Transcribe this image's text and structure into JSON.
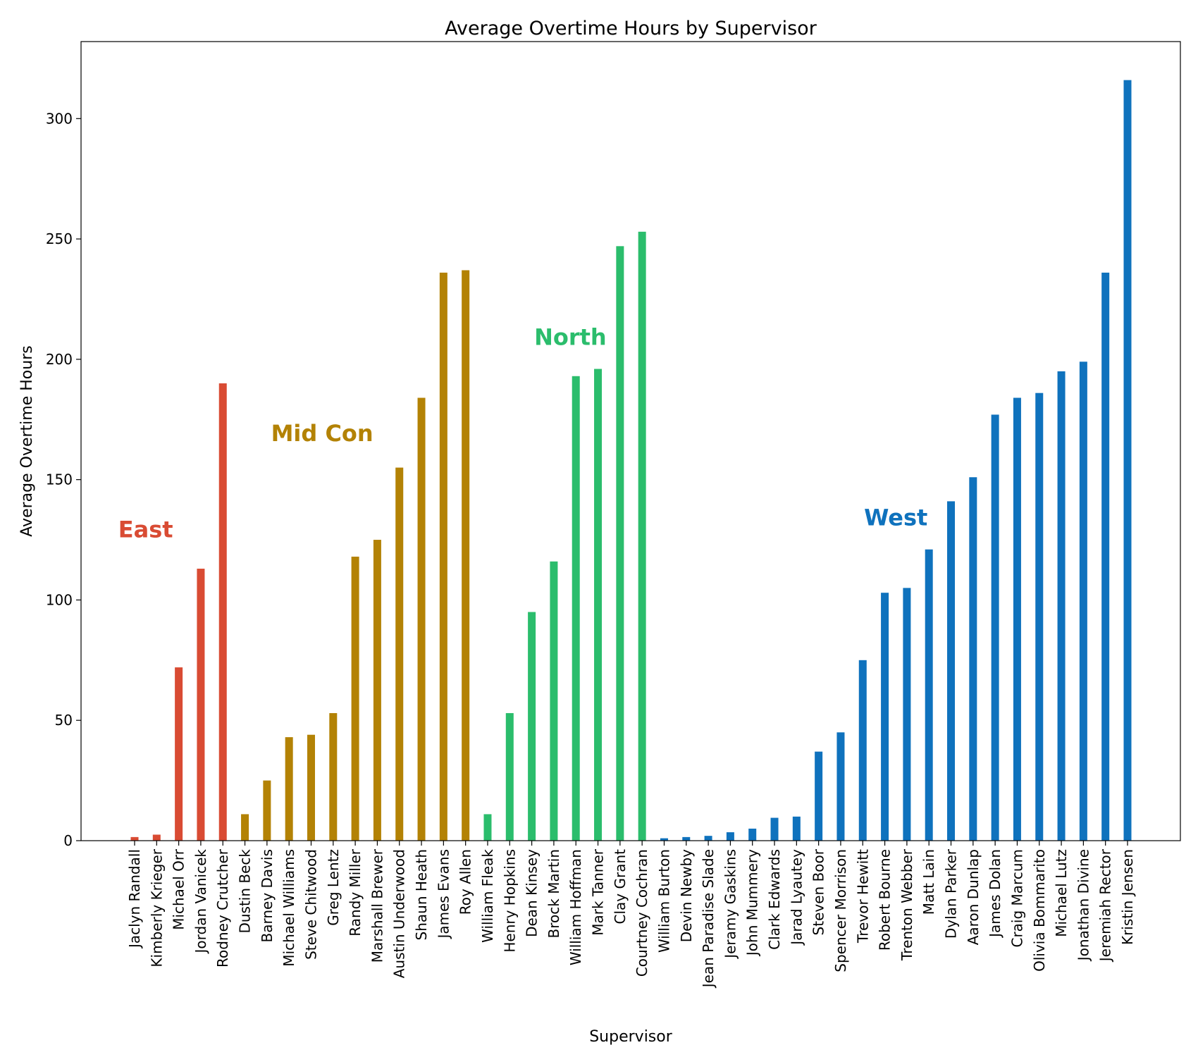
{
  "chart_data": {
    "type": "bar",
    "title": "Average Overtime Hours by Supervisor",
    "xlabel": "Supervisor",
    "ylabel": "Average Overtime Hours",
    "ylim": [
      0,
      332
    ],
    "yticks": [
      0,
      50,
      100,
      150,
      200,
      250,
      300
    ],
    "grid": false,
    "groups": [
      {
        "name": "East",
        "color": "#d94b33",
        "label_anchor": {
          "x_category": "Jaclyn Randall",
          "x_offset": 0.5,
          "y": 126
        },
        "categories": [
          "Jaclyn Randall",
          "Kimberly Krieger",
          "Michael Orr",
          "Jordan Vanicek",
          "Rodney Crutcher"
        ],
        "values": [
          1.5,
          2.5,
          72,
          113,
          190
        ]
      },
      {
        "name": "Mid Con",
        "color": "#b38205",
        "label_anchor": {
          "x_category": "Steve Chitwood",
          "x_offset": 0.5,
          "y": 166
        },
        "categories": [
          "Dustin Beck",
          "Barney Davis",
          "Michael Williams",
          "Steve Chitwood",
          "Greg Lentz",
          "Randy Miller",
          "Marshall Brewer",
          "Austin Underwood",
          "Shaun Heath",
          "James Evans",
          "Roy Allen"
        ],
        "values": [
          11,
          25,
          43,
          44,
          53,
          118,
          125,
          155,
          184,
          236,
          237
        ]
      },
      {
        "name": "North",
        "color": "#2bbd6c",
        "label_anchor": {
          "x_category": "Brock Martin",
          "x_offset": 0.75,
          "y": 206
        },
        "categories": [
          "William Fleak",
          "Henry Hopkins",
          "Dean Kinsey",
          "Brock Martin",
          "William Hoffman",
          "Mark Tanner",
          "Clay Grant",
          "Courtney Cochran"
        ],
        "values": [
          11,
          53,
          95,
          116,
          193,
          196,
          247,
          253
        ]
      },
      {
        "name": "West",
        "color": "#0f72bd",
        "label_anchor": {
          "x_category": "Trenton Webber",
          "x_offset": -0.5,
          "y": 131
        },
        "categories": [
          "William Burton",
          "Devin Newby",
          "Jean Paradise Slade",
          "Jeramy Gaskins",
          "John Mummery",
          "Clark Edwards",
          "Jarad Lyautey",
          "Steven Boor",
          "Spencer Morrison",
          "Trevor Hewitt",
          "Robert Bourne",
          "Trenton Webber",
          "Matt Lain",
          "Dylan Parker",
          "Aaron Dunlap",
          "James Dolan",
          "Craig Marcum",
          "Olivia Bommarito",
          "Michael Lutz",
          "Jonathan Divine",
          "Jeremiah Rector",
          "Kristin Jensen"
        ],
        "values": [
          1,
          1.5,
          2,
          3.5,
          5,
          9.5,
          10,
          37,
          45,
          75,
          103,
          105,
          121,
          141,
          151,
          177,
          184,
          186,
          195,
          199,
          236,
          316
        ]
      }
    ]
  }
}
